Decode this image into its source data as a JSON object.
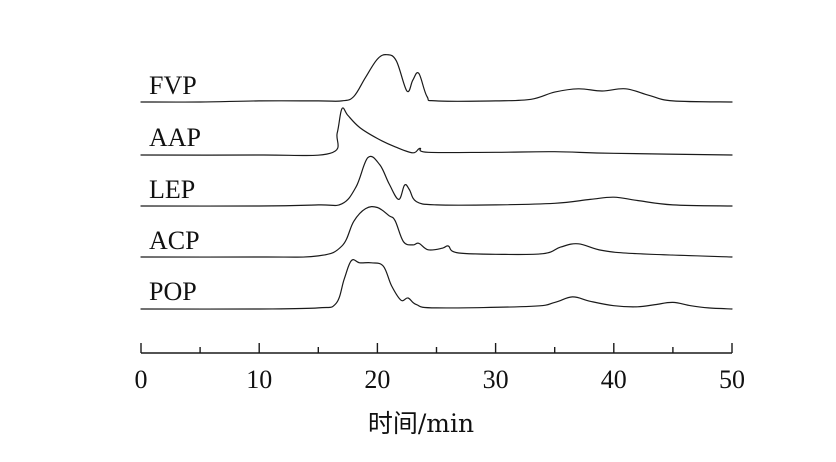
{
  "chart_data": {
    "type": "line",
    "title": "",
    "xlabel": "时间/min",
    "ylabel": "",
    "xlim": [
      0,
      50
    ],
    "x_ticks": [
      0,
      10,
      20,
      30,
      40,
      50
    ],
    "x_tick_labels": [
      "0",
      "10",
      "20",
      "30",
      "40",
      "50"
    ],
    "minor_tick_step": 5,
    "grid": false,
    "legend": "none",
    "line_color": "#1a1a1a",
    "series": [
      {
        "name": "FVP",
        "points": [
          [
            0,
            0
          ],
          [
            5,
            0
          ],
          [
            10,
            0.02
          ],
          [
            15,
            0.02
          ],
          [
            17,
            0.02
          ],
          [
            18,
            0.1
          ],
          [
            19,
            0.45
          ],
          [
            20,
            0.78
          ],
          [
            20.8,
            0.86
          ],
          [
            21.6,
            0.75
          ],
          [
            22.5,
            0.2
          ],
          [
            23,
            0.4
          ],
          [
            23.5,
            0.52
          ],
          [
            24.2,
            0.1
          ],
          [
            25,
            0.02
          ],
          [
            30,
            0.02
          ],
          [
            33,
            0.05
          ],
          [
            35,
            0.18
          ],
          [
            37,
            0.24
          ],
          [
            39,
            0.2
          ],
          [
            41,
            0.24
          ],
          [
            43,
            0.12
          ],
          [
            45,
            0.02
          ],
          [
            50,
            0
          ]
        ]
      },
      {
        "name": "AAP",
        "points": [
          [
            0,
            0
          ],
          [
            10,
            0
          ],
          [
            16,
            0.03
          ],
          [
            16.6,
            0.4
          ],
          [
            17,
            0.84
          ],
          [
            17.5,
            0.72
          ],
          [
            18.5,
            0.5
          ],
          [
            20,
            0.3
          ],
          [
            21.5,
            0.15
          ],
          [
            23,
            0.04
          ],
          [
            23.6,
            0.12
          ],
          [
            24.3,
            0.05
          ],
          [
            30,
            0.05
          ],
          [
            35,
            0.06
          ],
          [
            40,
            0.03
          ],
          [
            50,
            0
          ]
        ]
      },
      {
        "name": "LEP",
        "points": [
          [
            0,
            0
          ],
          [
            10,
            0
          ],
          [
            15,
            0.02
          ],
          [
            17,
            0.04
          ],
          [
            18.2,
            0.35
          ],
          [
            19.2,
            0.88
          ],
          [
            20.2,
            0.75
          ],
          [
            21,
            0.4
          ],
          [
            21.8,
            0.12
          ],
          [
            22.3,
            0.38
          ],
          [
            22.7,
            0.3
          ],
          [
            23.3,
            0.08
          ],
          [
            25,
            0.02
          ],
          [
            30,
            0.02
          ],
          [
            35,
            0.05
          ],
          [
            38,
            0.12
          ],
          [
            40,
            0.16
          ],
          [
            42,
            0.1
          ],
          [
            45,
            0.02
          ],
          [
            50,
            0
          ]
        ]
      },
      {
        "name": "ACP",
        "points": [
          [
            0,
            0
          ],
          [
            10,
            0
          ],
          [
            15,
            0.02
          ],
          [
            17,
            0.2
          ],
          [
            18,
            0.65
          ],
          [
            19,
            0.88
          ],
          [
            20,
            0.9
          ],
          [
            21,
            0.75
          ],
          [
            21.5,
            0.66
          ],
          [
            22.2,
            0.28
          ],
          [
            23,
            0.22
          ],
          [
            23.5,
            0.25
          ],
          [
            24.3,
            0.13
          ],
          [
            25.5,
            0.16
          ],
          [
            26,
            0.2
          ],
          [
            26.7,
            0.08
          ],
          [
            30,
            0.05
          ],
          [
            34,
            0.06
          ],
          [
            35.5,
            0.18
          ],
          [
            37,
            0.24
          ],
          [
            39,
            0.12
          ],
          [
            42,
            0.06
          ],
          [
            50,
            0
          ]
        ]
      },
      {
        "name": "POP",
        "points": [
          [
            0,
            0
          ],
          [
            10,
            0
          ],
          [
            15,
            0.02
          ],
          [
            16.5,
            0.1
          ],
          [
            17.2,
            0.55
          ],
          [
            17.8,
            0.88
          ],
          [
            18.5,
            0.84
          ],
          [
            19.5,
            0.84
          ],
          [
            20.5,
            0.78
          ],
          [
            21.2,
            0.42
          ],
          [
            22,
            0.16
          ],
          [
            22.6,
            0.2
          ],
          [
            23.3,
            0.08
          ],
          [
            25,
            0.02
          ],
          [
            33,
            0.05
          ],
          [
            35,
            0.12
          ],
          [
            36.5,
            0.22
          ],
          [
            38,
            0.14
          ],
          [
            40,
            0.06
          ],
          [
            42,
            0.04
          ],
          [
            43.5,
            0.08
          ],
          [
            45,
            0.12
          ],
          [
            46.5,
            0.06
          ],
          [
            48,
            0.02
          ],
          [
            50,
            0
          ]
        ]
      }
    ]
  }
}
